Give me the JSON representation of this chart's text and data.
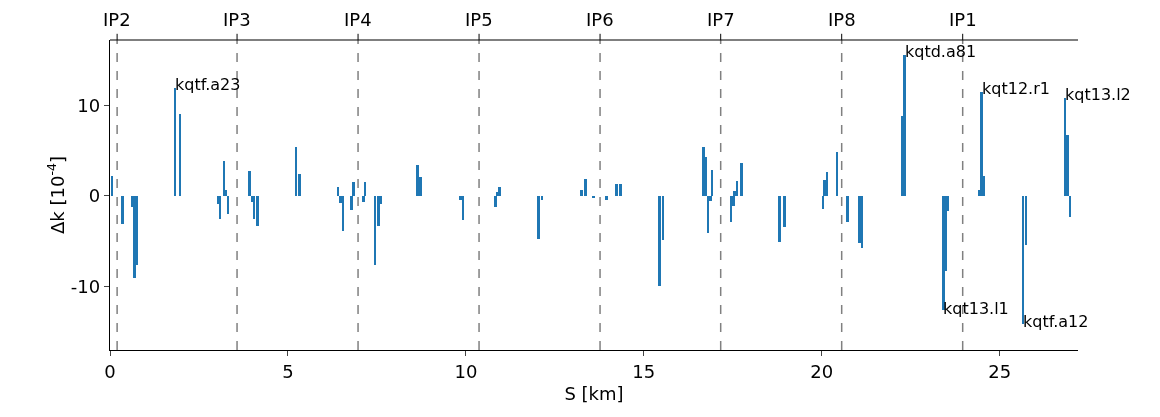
{
  "chart_data": {
    "type": "bar",
    "xlabel": "S [km]",
    "ylabel": "Δk [10$^{-4}$]",
    "x": [
      0.05,
      0.35,
      0.62,
      0.69,
      0.76,
      1.83,
      1.96,
      3.04,
      3.09,
      3.2,
      3.25,
      3.32,
      3.88,
      3.92,
      3.99,
      4.04,
      4.14,
      5.23,
      5.32,
      6.41,
      6.47,
      6.54,
      6.78,
      6.84,
      7.12,
      7.17,
      7.45,
      7.54,
      7.62,
      8.64,
      8.73,
      9.85,
      9.92,
      10.83,
      10.89,
      10.94,
      12.04,
      12.14,
      13.25,
      13.36,
      13.59,
      13.95,
      14.23,
      14.35,
      15.44,
      15.54,
      16.68,
      16.75,
      16.8,
      16.87,
      16.91,
      17.45,
      17.52,
      17.55,
      17.62,
      17.74,
      18.81,
      18.95,
      20.03,
      20.08,
      20.15,
      20.43,
      20.72,
      21.06,
      21.13,
      22.25,
      22.33,
      23.42,
      23.48,
      23.55,
      24.42,
      24.49,
      24.56,
      25.65,
      25.74,
      26.83,
      26.91,
      26.97
    ],
    "values": [
      2.2,
      -3.1,
      -1.2,
      -9.1,
      -7.6,
      11.9,
      9.0,
      -0.9,
      -2.6,
      3.8,
      0.7,
      -2.0,
      null,
      2.8,
      -0.7,
      -2.6,
      -3.3,
      5.4,
      2.4,
      1.0,
      -0.8,
      -3.9,
      -1.6,
      1.5,
      -0.7,
      1.5,
      -7.6,
      -3.3,
      -0.9,
      3.4,
      2.1,
      -0.5,
      -2.7,
      -1.2,
      0.4,
      1.0,
      -4.8,
      -0.5,
      0.6,
      1.9,
      -0.2,
      -0.4,
      1.3,
      1.3,
      -9.9,
      -4.9,
      5.4,
      4.3,
      -4.1,
      -0.6,
      2.9,
      -2.9,
      -1.1,
      0.5,
      1.6,
      3.6,
      -5.1,
      -3.4,
      -1.4,
      1.8,
      2.6,
      4.8,
      -2.9,
      -5.2,
      -5.7,
      8.8,
      15.5,
      -12.6,
      -8.3,
      -1.7,
      0.7,
      11.5,
      2.2,
      -14.1,
      -5.4,
      10.8,
      6.7,
      -2.3
    ],
    "color": "#1f77b4",
    "xlim": [
      0,
      27.2
    ],
    "xticks": [
      0,
      5,
      10,
      15,
      20,
      25
    ],
    "ylim": [
      -17,
      17.2
    ],
    "yticks": [
      -10,
      0,
      10
    ],
    "ref_lines": [
      {
        "axis": "x",
        "value": 0.2,
        "label": "IP2",
        "color": "#808080",
        "line_style": "dashed"
      },
      {
        "axis": "x",
        "value": 3.57,
        "label": "IP3",
        "color": "#808080",
        "line_style": "dashed"
      },
      {
        "axis": "x",
        "value": 6.97,
        "label": "IP4",
        "color": "#808080",
        "line_style": "dashed"
      },
      {
        "axis": "x",
        "value": 10.37,
        "label": "IP5",
        "color": "#808080",
        "line_style": "dashed"
      },
      {
        "axis": "x",
        "value": 13.77,
        "label": "IP6",
        "color": "#808080",
        "line_style": "dashed"
      },
      {
        "axis": "x",
        "value": 17.16,
        "label": "IP7",
        "color": "#808080",
        "line_style": "dashed"
      },
      {
        "axis": "x",
        "value": 20.56,
        "label": "IP8",
        "color": "#808080",
        "line_style": "dashed"
      },
      {
        "axis": "x",
        "value": 23.96,
        "label": "IP1",
        "color": "#808080",
        "line_style": "dashed"
      }
    ],
    "annotations": [
      {
        "text": "kqtf.a23",
        "x": 1.83,
        "y": 11.9
      },
      {
        "text": "kqtd.a81",
        "x": 22.33,
        "y": 15.5
      },
      {
        "text": "kqt12.r1",
        "x": 24.49,
        "y": 11.5
      },
      {
        "text": "kqt13.l2",
        "x": 26.83,
        "y": 10.8
      },
      {
        "text": "kqt13.l1",
        "x": 23.42,
        "y": -12.6
      },
      {
        "text": "kqtf.a12",
        "x": 25.65,
        "y": -14.1
      }
    ],
    "grid": false
  }
}
